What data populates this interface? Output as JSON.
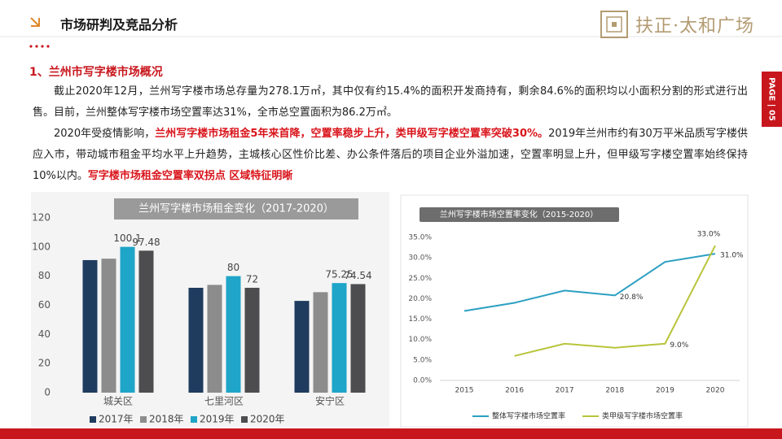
{
  "header": {
    "title": "市场研判及竞品分析",
    "logo": "扶正·太和广场",
    "page_tab": "PAGE | 05"
  },
  "section_title": "1、兰州市写字楼市场概况",
  "paragraphs": [
    [
      {
        "text": "截止2020年12月，兰州写字楼市场总存量为278.1万㎡，其中仅有约15.4%的面积开发商持有，剩余84.6%的面积均以小面积分割的形式进行出售。目前，兰州整体写字楼市场空置率达31%，全市总空置面积为86.2万㎡。",
        "highlight": false
      }
    ],
    [
      {
        "text": "2020年受疫情影响，",
        "highlight": false
      },
      {
        "text": "兰州写字楼市场租金5年来首降，空置率稳步上升，类甲级写字楼空置率突破30%。",
        "highlight": true
      },
      {
        "text": "2019年兰州市约有30万平米品质写字楼供应入市，带动城市租金平均水平上升趋势，主城核心区性价比差、办公条件落后的项目企业外溢加速，空置率明显上升，但甲级写字楼空置率始终保持10%以内。",
        "highlight": false
      },
      {
        "text": "写字楼市场租金空置率双拐点 区域特征明晰",
        "highlight": true
      }
    ]
  ],
  "chart_data": [
    {
      "type": "bar",
      "title": "兰州写字楼市场租金变化（2017-2020）",
      "categories": [
        "城关区",
        "七里河区",
        "安宁区"
      ],
      "series": [
        {
          "name": "2017年",
          "color": "#1f3b5e",
          "values": [
            91,
            72,
            63
          ],
          "show_labels": false
        },
        {
          "name": "2018年",
          "color": "#8c8c8c",
          "values": [
            92,
            74,
            69
          ],
          "show_labels": false
        },
        {
          "name": "2019年",
          "color": "#1ea5c8",
          "values": [
            100.1,
            80,
            75.25
          ],
          "show_labels": true
        },
        {
          "name": "2020年",
          "color": "#4d4d4f",
          "values": [
            97.48,
            72,
            74.54
          ],
          "show_labels": true
        }
      ],
      "ylim": [
        0,
        120
      ],
      "yticks": [
        0,
        20,
        40,
        60,
        80,
        100,
        120
      ],
      "legend": "bottom"
    },
    {
      "type": "line",
      "title": "兰州写字楼市场空置率变化（2015-2020）",
      "categories": [
        "2015",
        "2016",
        "2017",
        "2018",
        "2019",
        "2020"
      ],
      "series": [
        {
          "name": "整体写字楼市场空置率",
          "color": "#2b9fc2",
          "values": [
            17,
            19,
            22,
            20.8,
            29,
            31
          ],
          "value_labels": [
            null,
            null,
            null,
            "20.8%",
            null,
            "31.0%"
          ]
        },
        {
          "name": "类甲级写字楼市场空置率",
          "color": "#b8c43a",
          "values": [
            null,
            6,
            9,
            8,
            9,
            33
          ],
          "value_labels": [
            null,
            null,
            null,
            null,
            "9.0%",
            "33.0%"
          ]
        }
      ],
      "ylim": [
        0,
        35
      ],
      "yticks": [
        {
          "value": 0,
          "label": "0.0%"
        },
        {
          "value": 5,
          "label": "5.0%"
        },
        {
          "value": 10,
          "label": "10.0%"
        },
        {
          "value": 15,
          "label": "15.0%"
        },
        {
          "value": 20,
          "label": "20.0%"
        },
        {
          "value": 25,
          "label": "25.0%"
        },
        {
          "value": 30,
          "label": "30.0%"
        },
        {
          "value": 35,
          "label": "35.0%"
        }
      ],
      "legend": "bottom"
    }
  ]
}
